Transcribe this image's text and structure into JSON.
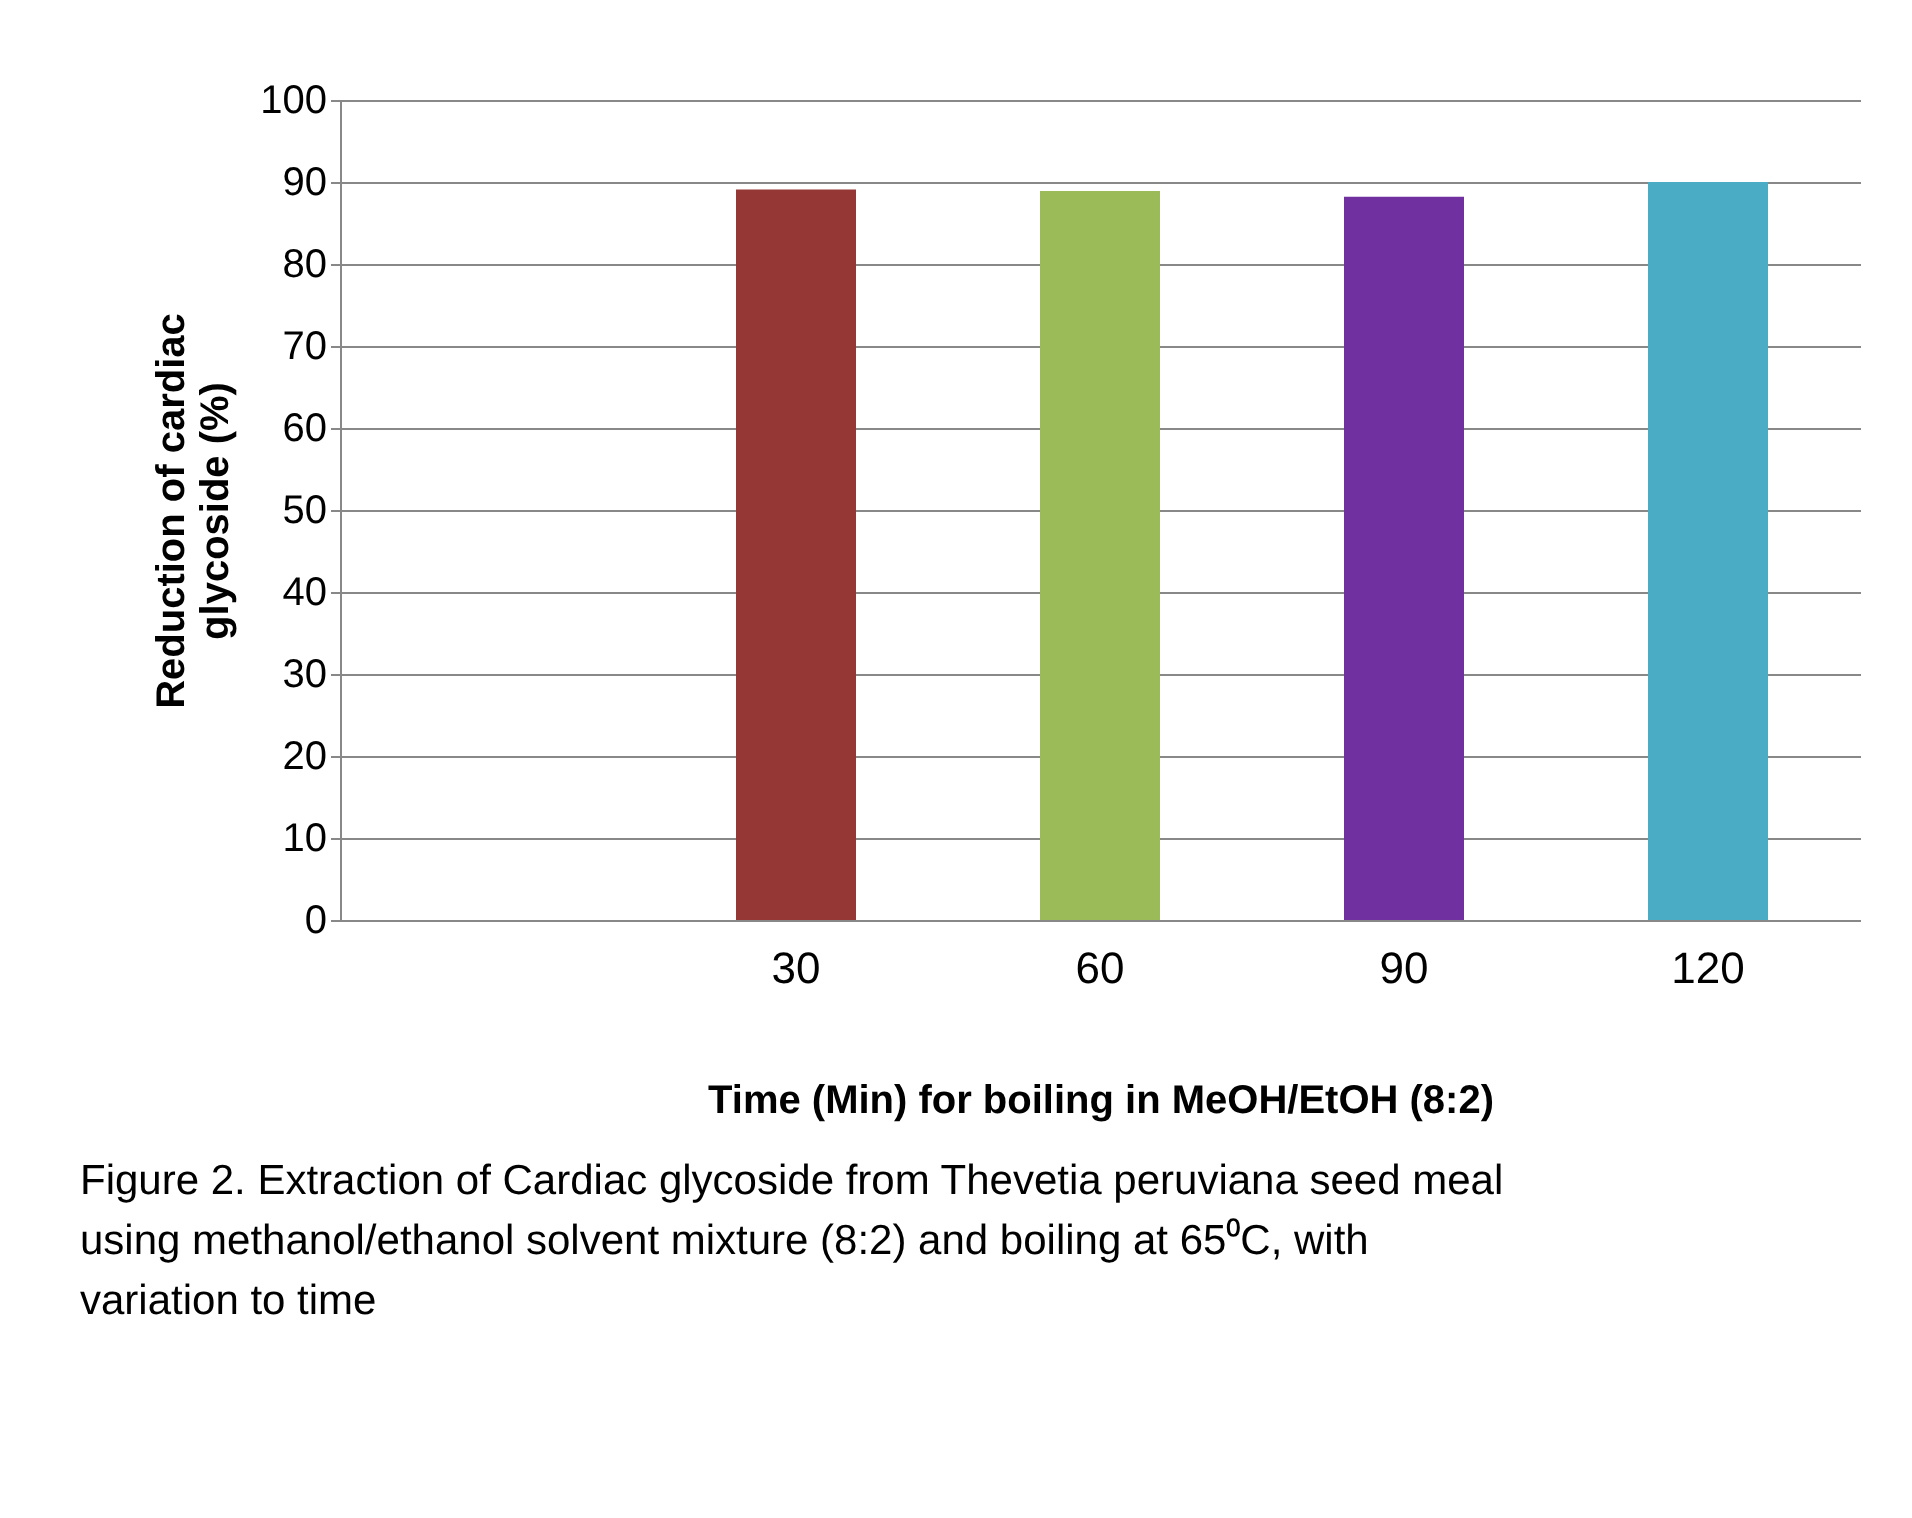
{
  "chart_data": {
    "type": "bar",
    "xlabel": "Time (Min) for boiling in MeOH/EtOH (8:2)",
    "ylabel": "Reduction of cardiac glycoside (%)",
    "categories": [
      null,
      "30",
      "60",
      "90",
      "120"
    ],
    "values": [
      null,
      89.1,
      88.9,
      88.2,
      90.0
    ],
    "colors": [
      "#953735",
      "#953735",
      "#9bbb59",
      "#7030a0",
      "#4bacc6"
    ],
    "ylim": [
      0,
      100
    ],
    "yticks": [
      0,
      10,
      20,
      30,
      40,
      50,
      60,
      70,
      80,
      90,
      100
    ],
    "grid": "y",
    "legend": false,
    "annotations": [
      "Figure  2.   Extraction of Cardiac glycoside from Thevetia peruviana seed meal using methanol/ethanol solvent mixture (8:2) and boiling at 65⁰C, with variation to time"
    ]
  }
}
